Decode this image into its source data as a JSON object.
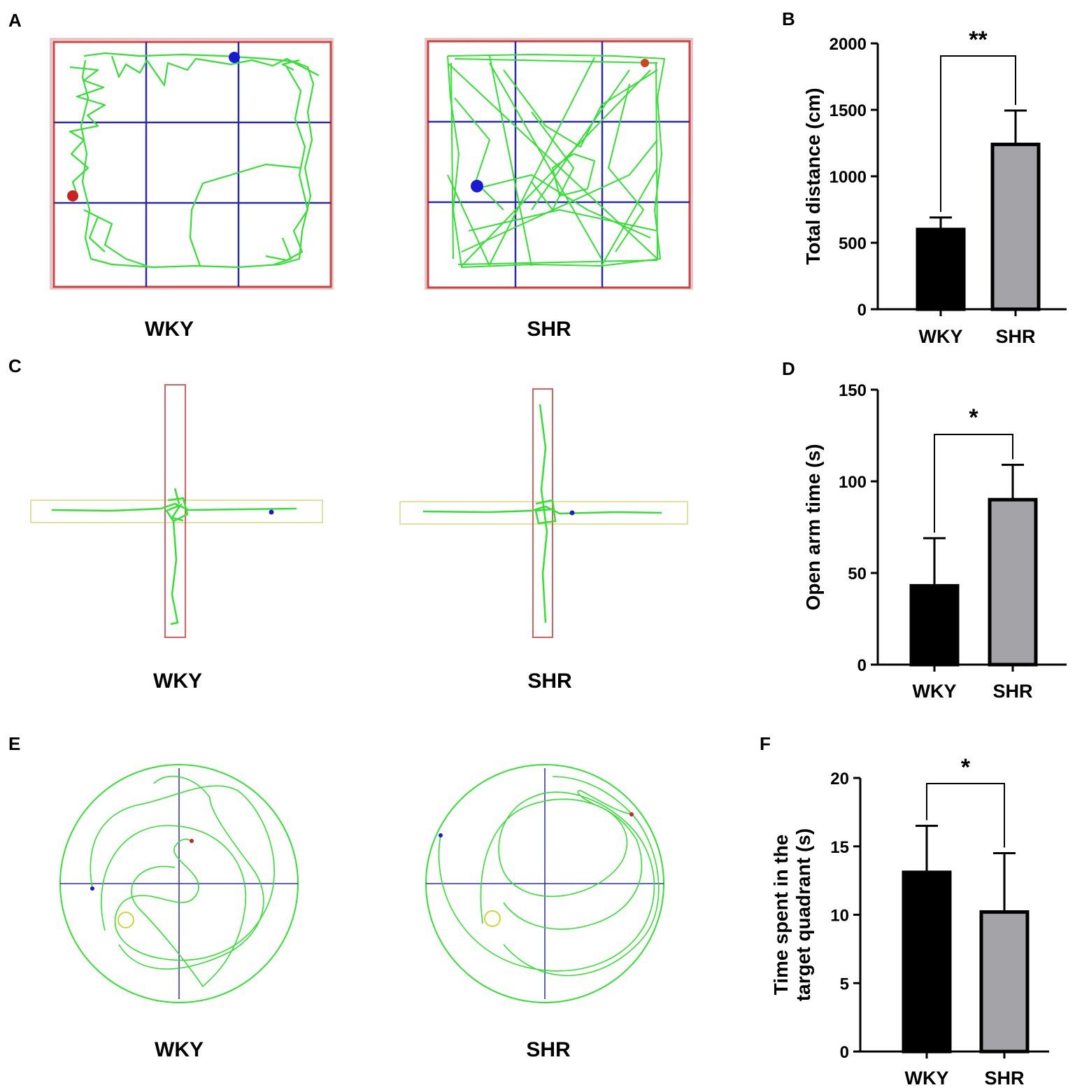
{
  "colors": {
    "track": "#33e133",
    "grid": "#2b2ba8",
    "border": "#cc4444",
    "bar_wky": "#000000",
    "bar_shr": "#a3a3a8",
    "start_dot": "#1a1ad6",
    "end_dot": "#cc2222",
    "platform": "#c8d830",
    "closed_arm": "#d96060",
    "open_arm": "#e6e0a0"
  },
  "panels": {
    "A": {
      "letter": "A",
      "left_label": "WKY",
      "right_label": "SHR"
    },
    "C": {
      "letter": "C",
      "left_label": "WKY",
      "right_label": "SHR"
    },
    "E": {
      "letter": "E",
      "left_label": "WKY",
      "right_label": "SHR"
    }
  },
  "chart_data": [
    {
      "panel": "B",
      "type": "bar",
      "categories": [
        "WKY",
        "SHR"
      ],
      "values": [
        600,
        1240
      ],
      "errors": [
        90,
        255
      ],
      "ylabel": "Total distance (cm)",
      "ylim": [
        0,
        2000
      ],
      "yticks": [
        0,
        500,
        1000,
        1500,
        2000
      ],
      "significance": "**"
    },
    {
      "panel": "D",
      "type": "bar",
      "categories": [
        "WKY",
        "SHR"
      ],
      "values": [
        43,
        90
      ],
      "errors": [
        26,
        19
      ],
      "ylabel": "Open arm time (s)",
      "ylim": [
        0,
        150
      ],
      "yticks": [
        0,
        50,
        100,
        150
      ],
      "significance": "*"
    },
    {
      "panel": "F",
      "type": "bar",
      "categories": [
        "WKY",
        "SHR"
      ],
      "values": [
        13.1,
        10.2
      ],
      "errors": [
        3.4,
        4.3
      ],
      "ylabel_lines": [
        "Time spent in the",
        "target quadrant (s)"
      ],
      "ylim": [
        0,
        20
      ],
      "yticks": [
        0,
        5,
        10,
        15,
        20
      ],
      "significance": "*"
    }
  ]
}
